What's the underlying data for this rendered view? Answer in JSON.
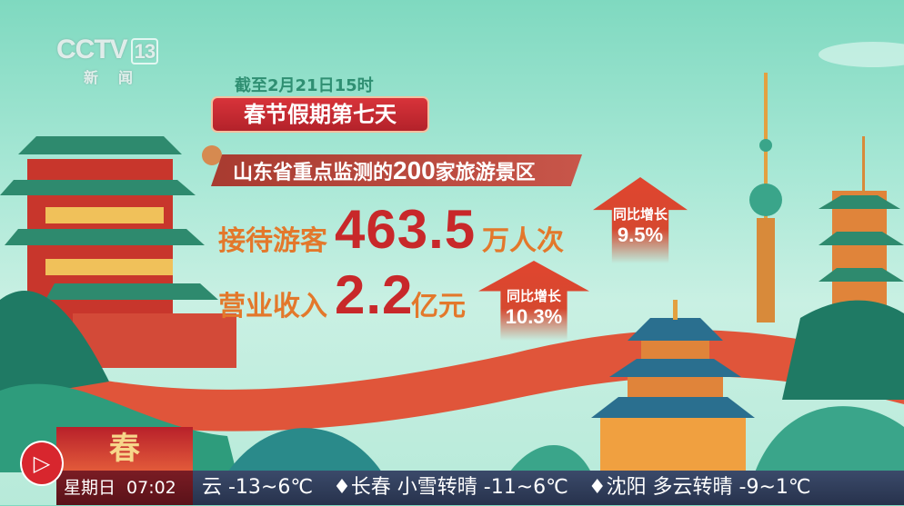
{
  "channel_logo": {
    "brand": "CCTV",
    "number": "13",
    "name": "新闻"
  },
  "headline": {
    "date_note": "截至2月21日15时",
    "title": "春节假期第七天",
    "subtitle_pre": "山东省重点监测的",
    "subtitle_num": "200",
    "subtitle_post": "家旅游景区"
  },
  "stats": [
    {
      "label": "接待游客",
      "value": "463.5",
      "unit": "万人次",
      "change_label": "同比增长",
      "change": "9.5%"
    },
    {
      "label": "营业收入",
      "value": "2.2",
      "unit": "亿元",
      "change_label": "同比增长",
      "change": "10.3%"
    }
  ],
  "ticker": {
    "weekday": "星期日",
    "time": "07:02",
    "thumbnail_text": "春",
    "text": "云 -13~6℃　♦长春 小雪转晴 -11~6℃　♦沈阳 多云转晴 -9~1℃"
  },
  "colors": {
    "accent_red": "#c8282a",
    "label_orange": "#e3782b",
    "ticker_bg": "#27324c"
  }
}
